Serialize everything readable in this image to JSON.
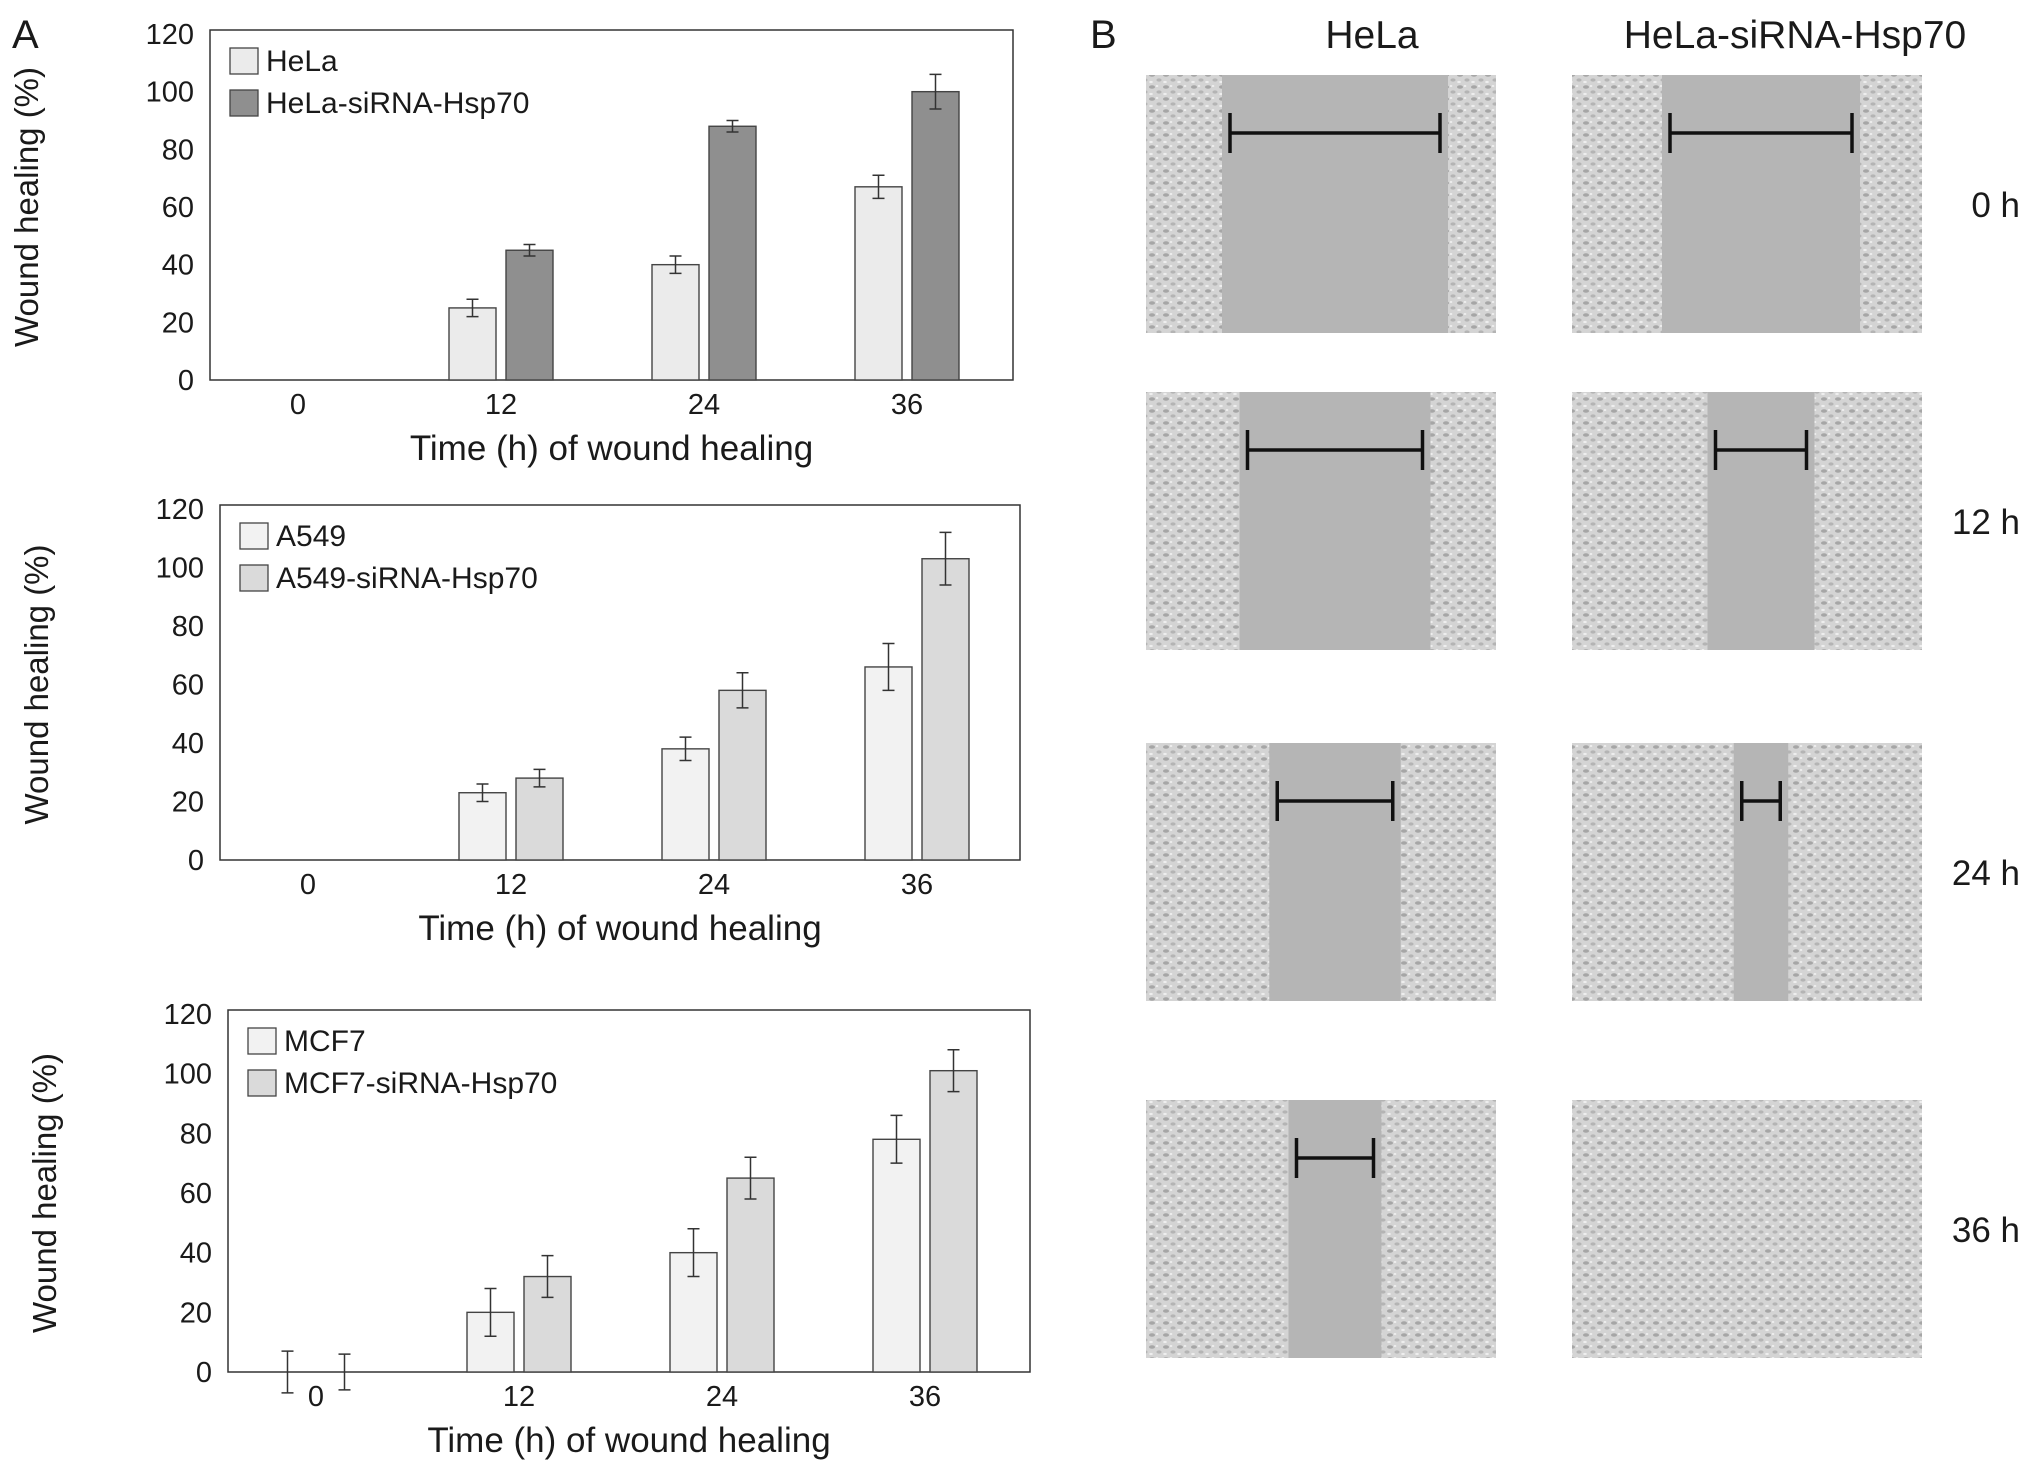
{
  "panel_a_label": "A",
  "panel_b_label": "B",
  "chart_data": [
    {
      "type": "bar",
      "categories": [
        "0",
        "12",
        "24",
        "36"
      ],
      "series": [
        {
          "name": "HeLa",
          "values": [
            0,
            25,
            40,
            67
          ],
          "errors": [
            0,
            3,
            3,
            4
          ],
          "color": "#ebebeb"
        },
        {
          "name": "HeLa-siRNA-Hsp70",
          "values": [
            0,
            45,
            88,
            100
          ],
          "errors": [
            0,
            2,
            2,
            6
          ],
          "color": "#8f8f8f"
        }
      ],
      "xlabel": "Time (h) of wound healing",
      "ylabel": "Wound healing (%)",
      "ylim": [
        0,
        120
      ],
      "yticks": [
        "0",
        "20",
        "40",
        "60",
        "80",
        "100",
        "120"
      ],
      "legend": "top-left",
      "grid": false
    },
    {
      "type": "bar",
      "categories": [
        "0",
        "12",
        "24",
        "36"
      ],
      "series": [
        {
          "name": "A549",
          "values": [
            0,
            23,
            38,
            66
          ],
          "errors": [
            0,
            3,
            4,
            8
          ],
          "color": "#f2f2f2"
        },
        {
          "name": "A549-siRNA-Hsp70",
          "values": [
            0,
            28,
            58,
            103
          ],
          "errors": [
            0,
            3,
            6,
            9
          ],
          "color": "#dadada"
        }
      ],
      "xlabel": "Time (h) of wound healing",
      "ylabel": "Wound healing (%)",
      "ylim": [
        0,
        120
      ],
      "yticks": [
        "0",
        "20",
        "40",
        "60",
        "80",
        "100",
        "120"
      ],
      "legend": "top-left",
      "grid": false
    },
    {
      "type": "bar",
      "categories": [
        "0",
        "12",
        "24",
        "36"
      ],
      "series": [
        {
          "name": "MCF7",
          "values": [
            0,
            20,
            40,
            78
          ],
          "errors": [
            7,
            8,
            8,
            8
          ],
          "color": "#f2f2f2"
        },
        {
          "name": "MCF7-siRNA-Hsp70",
          "values": [
            0,
            32,
            65,
            101
          ],
          "errors": [
            6,
            7,
            7,
            7
          ],
          "color": "#dadada"
        }
      ],
      "xlabel": "Time (h) of wound healing",
      "ylabel": "Wound healing (%)",
      "ylim": [
        0,
        120
      ],
      "yticks": [
        "0",
        "20",
        "40",
        "60",
        "80",
        "100",
        "120"
      ],
      "legend": "top-left",
      "grid": false
    }
  ],
  "micrographs": {
    "columns": [
      "HeLa",
      "HeLa-siRNA-Hsp70"
    ],
    "rows": [
      "0 h",
      "12 h",
      "24 h",
      "36 h"
    ],
    "scratch_widths": [
      [
        0.6,
        0.52
      ],
      [
        0.5,
        0.26
      ],
      [
        0.33,
        0.11
      ],
      [
        0.22,
        0
      ]
    ]
  }
}
